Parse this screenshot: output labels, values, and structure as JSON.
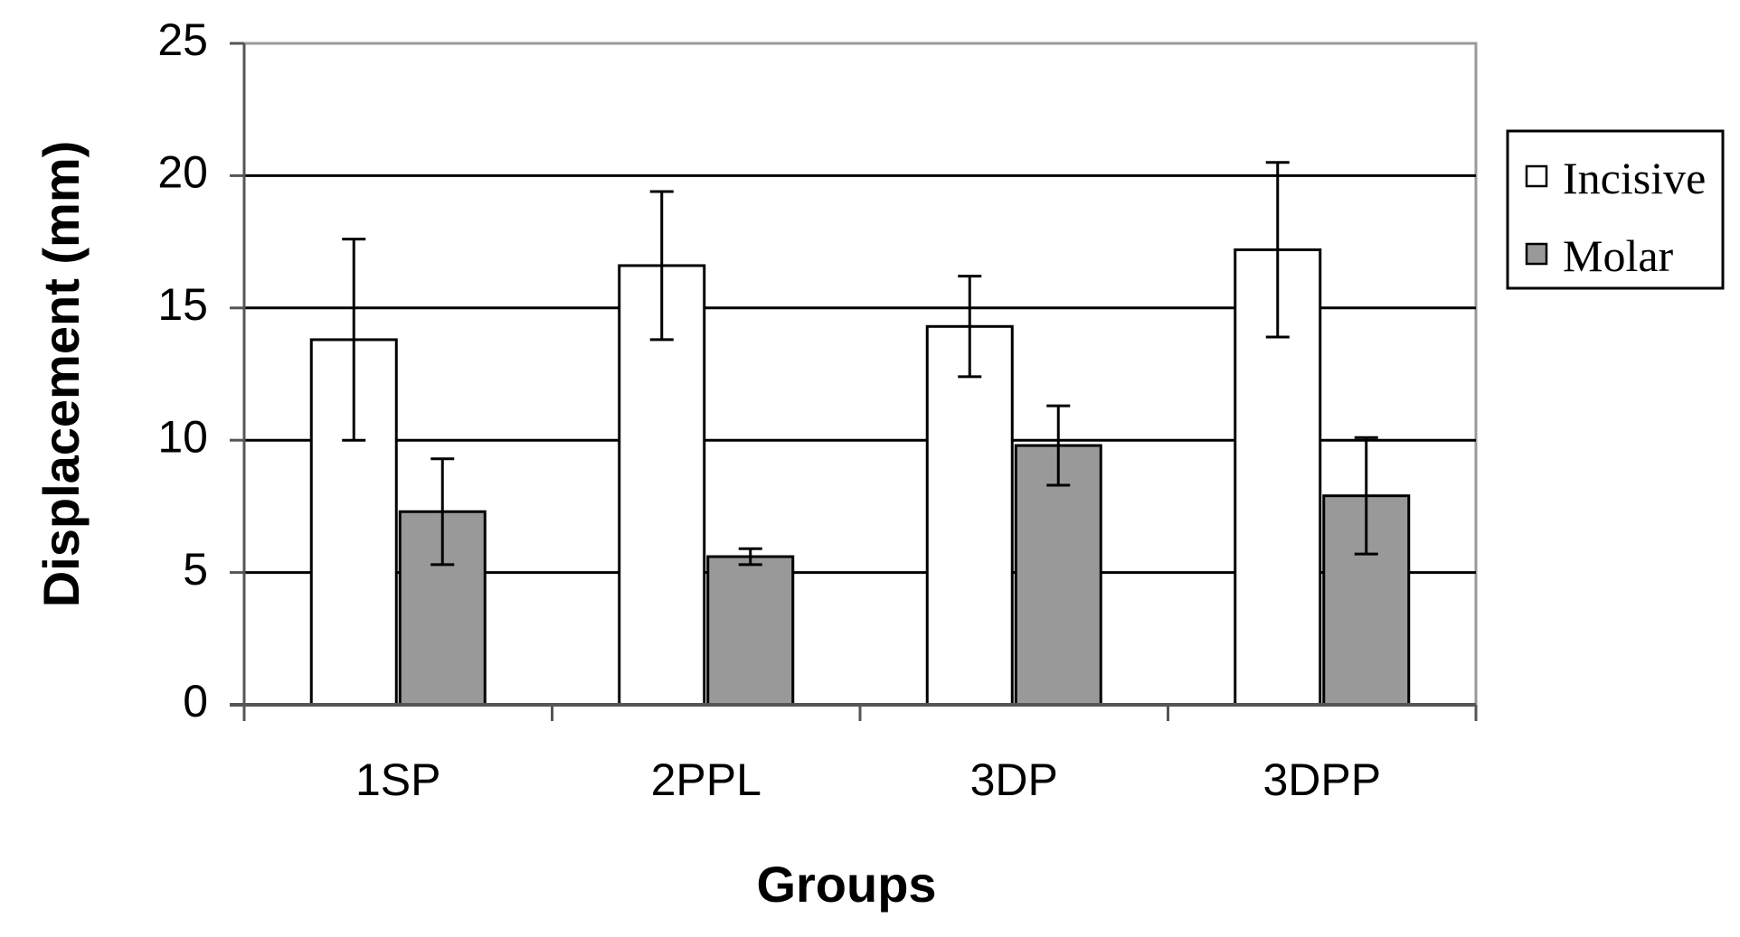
{
  "chart_data": {
    "type": "bar",
    "xlabel": "Groups",
    "ylabel": "Displacement (mm)",
    "categories": [
      "1SP",
      "2PPL",
      "3DP",
      "3DPP"
    ],
    "ylim": [
      0,
      25
    ],
    "yticks": [
      0,
      5,
      10,
      15,
      20,
      25
    ],
    "grid": true,
    "legend_position": "right",
    "series": [
      {
        "name": "Incisive",
        "color": "#ffffff",
        "values": [
          13.8,
          16.6,
          14.3,
          17.2
        ],
        "error": [
          3.8,
          2.8,
          1.9,
          3.3
        ]
      },
      {
        "name": "Molar",
        "color": "#999999",
        "values": [
          7.3,
          5.6,
          9.8,
          7.9
        ],
        "error": [
          2.0,
          0.3,
          1.5,
          2.2
        ]
      }
    ]
  }
}
